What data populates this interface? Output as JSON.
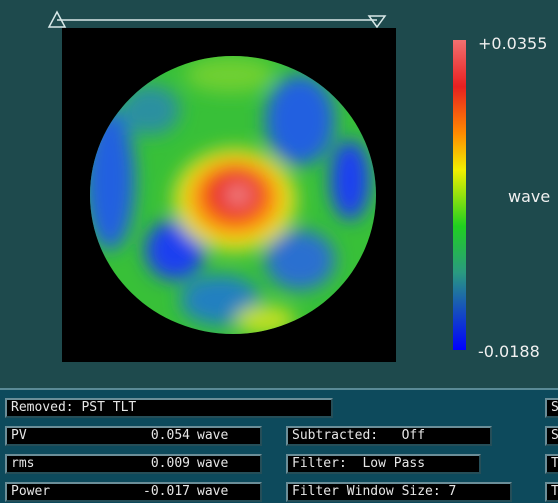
{
  "colorbar": {
    "max": "+0.0355",
    "unit": "wave",
    "min": "-0.0188"
  },
  "removed": "Removed: PST TLT",
  "stats": [
    {
      "label": "PV",
      "value": "0.054",
      "unit": "wave"
    },
    {
      "label": "rms",
      "value": "0.009",
      "unit": "wave"
    },
    {
      "label": "Power",
      "value": "-0.017",
      "unit": "wave"
    }
  ],
  "settings": [
    "Subtracted:   Off",
    "Filter:  Low Pass",
    "Filter Window Size: 7"
  ],
  "right_column": [
    "S",
    "S",
    "T",
    "T"
  ]
}
